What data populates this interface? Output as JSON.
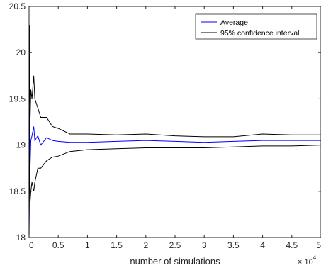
{
  "chart_data": {
    "type": "line",
    "xlabel": "number of simulations",
    "ylabel": "",
    "x_multiplier_label": "× 10",
    "x_multiplier_exponent": "4",
    "xlim": [
      0,
      5
    ],
    "ylim": [
      18,
      20.5
    ],
    "x_ticks": [
      0,
      0.5,
      1,
      1.5,
      2,
      2.5,
      3,
      3.5,
      4,
      4.5,
      5
    ],
    "x_tick_labels": [
      "0",
      "0.5",
      "1",
      "1.5",
      "2",
      "2.5",
      "3",
      "3.5",
      "4",
      "4.5",
      "5"
    ],
    "y_ticks": [
      18,
      18.5,
      19,
      19.5,
      20,
      20.5
    ],
    "y_tick_labels": [
      "18",
      "18.5",
      "19",
      "19.5",
      "20",
      "20.5"
    ],
    "grid": false,
    "legend_position": "top-right",
    "series": [
      {
        "name": "Average",
        "color": "#0000ff",
        "x": [
          0,
          0.01,
          0.02,
          0.03,
          0.05,
          0.08,
          0.1,
          0.15,
          0.2,
          0.3,
          0.4,
          0.5,
          0.7,
          1,
          1.5,
          2,
          2.5,
          3,
          3.5,
          4,
          4.5,
          5
        ],
        "y": [
          18.1,
          19.4,
          18.8,
          19.05,
          19.1,
          19.2,
          19.05,
          19.1,
          19.0,
          19.08,
          19.05,
          19.04,
          19.03,
          19.03,
          19.04,
          19.05,
          19.04,
          19.03,
          19.04,
          19.05,
          19.05,
          19.05
        ]
      },
      {
        "name": "95% confidence interval",
        "color": "#000000",
        "x": [
          0,
          0.01,
          0.02,
          0.03,
          0.05,
          0.08,
          0.1,
          0.15,
          0.2,
          0.3,
          0.4,
          0.5,
          0.7,
          1,
          1.5,
          2,
          2.5,
          3,
          3.5,
          4,
          4.5,
          5
        ],
        "y": [
          18.3,
          20.3,
          19.3,
          19.6,
          19.5,
          19.75,
          19.5,
          19.4,
          19.3,
          19.3,
          19.2,
          19.18,
          19.12,
          19.12,
          19.11,
          19.12,
          19.1,
          19.09,
          19.09,
          19.12,
          19.11,
          19.11
        ]
      },
      {
        "name": "",
        "color": "#000000",
        "x": [
          0,
          0.01,
          0.02,
          0.03,
          0.05,
          0.08,
          0.1,
          0.15,
          0.2,
          0.3,
          0.4,
          0.5,
          0.7,
          1,
          1.5,
          2,
          2.5,
          3,
          3.5,
          4,
          4.5,
          5
        ],
        "y": [
          18.0,
          18.9,
          18.4,
          18.5,
          18.6,
          18.5,
          18.6,
          18.75,
          18.75,
          18.83,
          18.87,
          18.88,
          18.93,
          18.95,
          18.96,
          18.97,
          18.97,
          18.97,
          18.98,
          18.99,
          18.99,
          19.0
        ]
      }
    ]
  }
}
